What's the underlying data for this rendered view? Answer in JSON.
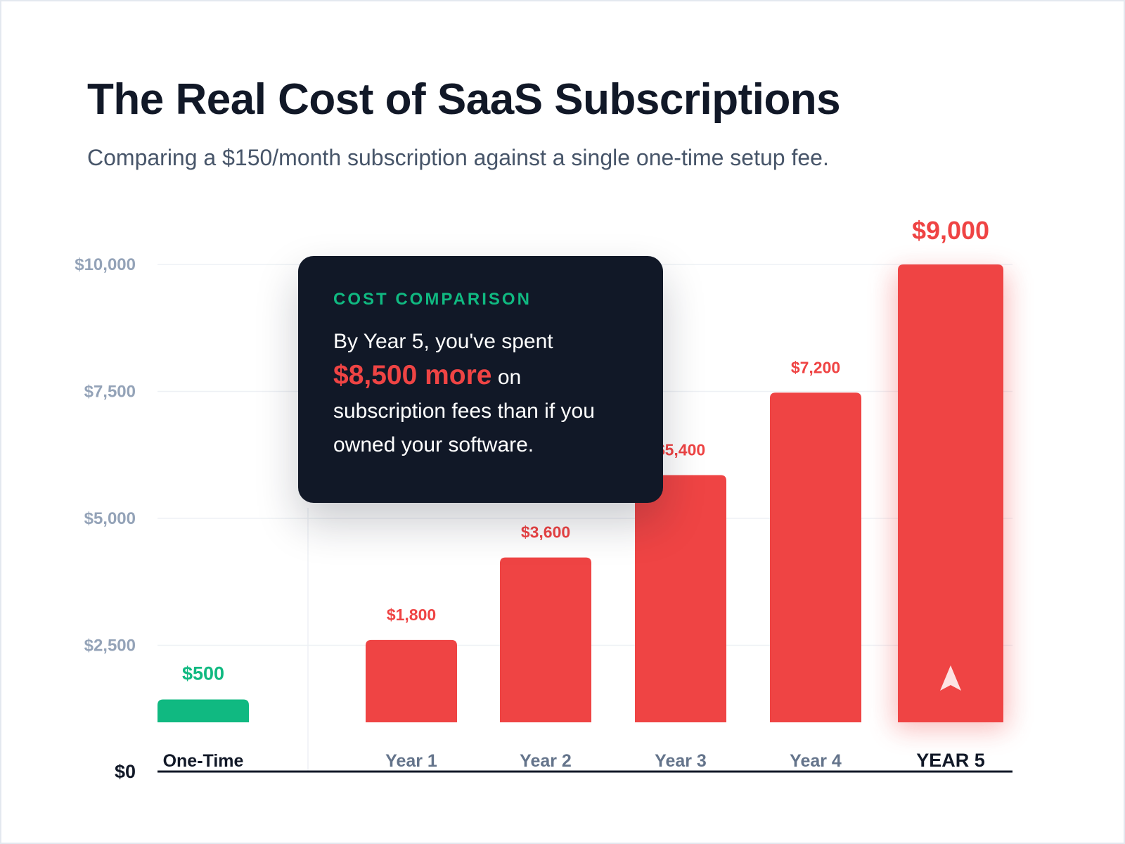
{
  "title": "The Real Cost of SaaS Subscriptions",
  "subtitle": "Comparing a $150/month subscription against a single one-time setup fee.",
  "callout": {
    "eyebrow": "COST COMPARISON",
    "text_before": "By Year 5, you've spent",
    "highlight": "$8,500 more",
    "text_after": "on subscription fees than if you owned your software."
  },
  "colors": {
    "one_time": "#10b981",
    "subscription": "#ef4444",
    "axis_label": "#94a3b8",
    "category_label": "#64748b",
    "dark": "#111827",
    "grid": "#eef1f5"
  },
  "chart_data": {
    "type": "bar",
    "categories": [
      "One-Time",
      "Year 1",
      "Year 2",
      "Year 3",
      "Year 4",
      "YEAR 5"
    ],
    "values": [
      500,
      1800,
      3600,
      5400,
      7200,
      9000
    ],
    "value_labels": [
      "$500",
      "$1,800",
      "$3,600",
      "$5,400",
      "$7,200",
      "$9,000"
    ],
    "ylim": [
      0,
      10000
    ],
    "yticks": [
      0,
      2500,
      5000,
      7500,
      10000
    ],
    "ytick_labels": [
      "$0",
      "$2,500",
      "$5,000",
      "$7,500",
      "$10,000"
    ],
    "grid": true,
    "highlight_category": "YEAR 5",
    "highlight_icon": "arrow-up-icon",
    "xlabel": "",
    "ylabel": ""
  }
}
